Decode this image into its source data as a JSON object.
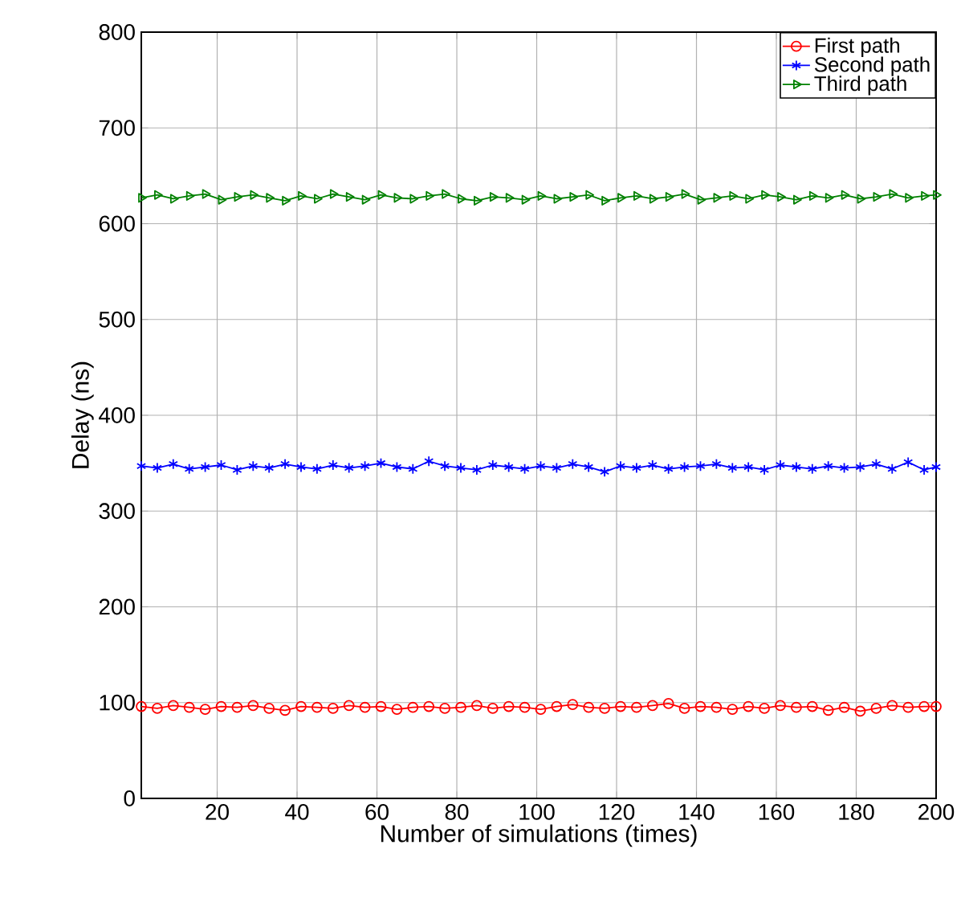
{
  "chart_data": {
    "type": "line",
    "xlabel": "Number of simulations (times)",
    "ylabel": "Delay (ns)",
    "x": [
      1,
      5,
      9,
      13,
      17,
      21,
      25,
      29,
      33,
      37,
      41,
      45,
      49,
      53,
      57,
      61,
      65,
      69,
      73,
      77,
      81,
      85,
      89,
      93,
      97,
      101,
      105,
      109,
      113,
      117,
      121,
      125,
      129,
      133,
      137,
      141,
      145,
      149,
      153,
      157,
      161,
      165,
      169,
      173,
      177,
      181,
      185,
      189,
      193,
      197,
      200
    ],
    "series": [
      {
        "name": "First path",
        "color": "#ff0000",
        "marker": "circle",
        "values": [
          96,
          94,
          97,
          95,
          93,
          96,
          95,
          97,
          94,
          92,
          96,
          95,
          94,
          97,
          95,
          96,
          93,
          95,
          96,
          94,
          95,
          97,
          94,
          96,
          95,
          93,
          96,
          98,
          95,
          94,
          96,
          95,
          97,
          99,
          94,
          96,
          95,
          93,
          96,
          94,
          97,
          95,
          96,
          92,
          95,
          91,
          94,
          97,
          95,
          96,
          96
        ]
      },
      {
        "name": "Second path",
        "color": "#0000ff",
        "marker": "cross",
        "values": [
          347,
          345,
          349,
          344,
          346,
          348,
          343,
          347,
          345,
          349,
          346,
          344,
          348,
          345,
          347,
          350,
          346,
          344,
          352,
          347,
          345,
          343,
          348,
          346,
          344,
          347,
          345,
          349,
          346,
          341,
          347,
          345,
          348,
          344,
          346,
          347,
          349,
          345,
          346,
          343,
          348,
          346,
          344,
          347,
          345,
          346,
          349,
          344,
          351,
          343,
          346
        ]
      },
      {
        "name": "Third path",
        "color": "#008000",
        "marker": "triangle",
        "values": [
          627,
          630,
          626,
          629,
          631,
          625,
          628,
          630,
          627,
          624,
          629,
          626,
          631,
          628,
          625,
          630,
          627,
          626,
          629,
          631,
          626,
          624,
          628,
          627,
          625,
          629,
          626,
          628,
          630,
          624,
          627,
          629,
          626,
          628,
          631,
          625,
          627,
          629,
          626,
          630,
          628,
          625,
          629,
          627,
          630,
          626,
          628,
          631,
          627,
          629,
          630
        ]
      }
    ],
    "xlim": [
      1,
      200
    ],
    "xticks": [
      20,
      40,
      60,
      80,
      100,
      120,
      140,
      160,
      180,
      200
    ],
    "ylim": [
      0,
      800
    ],
    "yticks": [
      0,
      100,
      200,
      300,
      400,
      500,
      600,
      700,
      800
    ],
    "grid": true,
    "legend": "top right"
  }
}
